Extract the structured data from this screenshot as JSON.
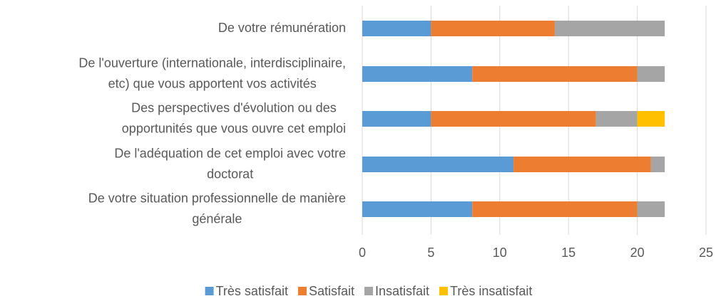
{
  "chart_data": {
    "type": "stacked-bar-horizontal",
    "categories": [
      [
        "De votre rémunération"
      ],
      [
        "De l'ouverture (internationale, interdisciplinaire,",
        "etc) que vous apportent vos activités"
      ],
      [
        "Des perspectives d'évolution ou des",
        "opportunités que vous ouvre cet emploi"
      ],
      [
        "De l'adéquation de cet emploi avec votre",
        "doctorat"
      ],
      [
        "De votre situation professionnelle de manière",
        "générale"
      ]
    ],
    "series": [
      {
        "name": "Très satisfait",
        "color": "#5b9bd5",
        "values": [
          5,
          8,
          5,
          11,
          8
        ]
      },
      {
        "name": "Satisfait",
        "color": "#ed7d31",
        "values": [
          9,
          12,
          12,
          10,
          12
        ]
      },
      {
        "name": "Insatisfait",
        "color": "#a5a5a5",
        "values": [
          8,
          2,
          3,
          1,
          2
        ]
      },
      {
        "name": "Très insatisfait",
        "color": "#ffc000",
        "values": [
          0,
          0,
          2,
          0,
          0
        ]
      }
    ],
    "xlim": [
      0,
      25
    ],
    "xticks": [
      0,
      5,
      10,
      15,
      20,
      25
    ],
    "grid": true,
    "legend": "bottom"
  }
}
